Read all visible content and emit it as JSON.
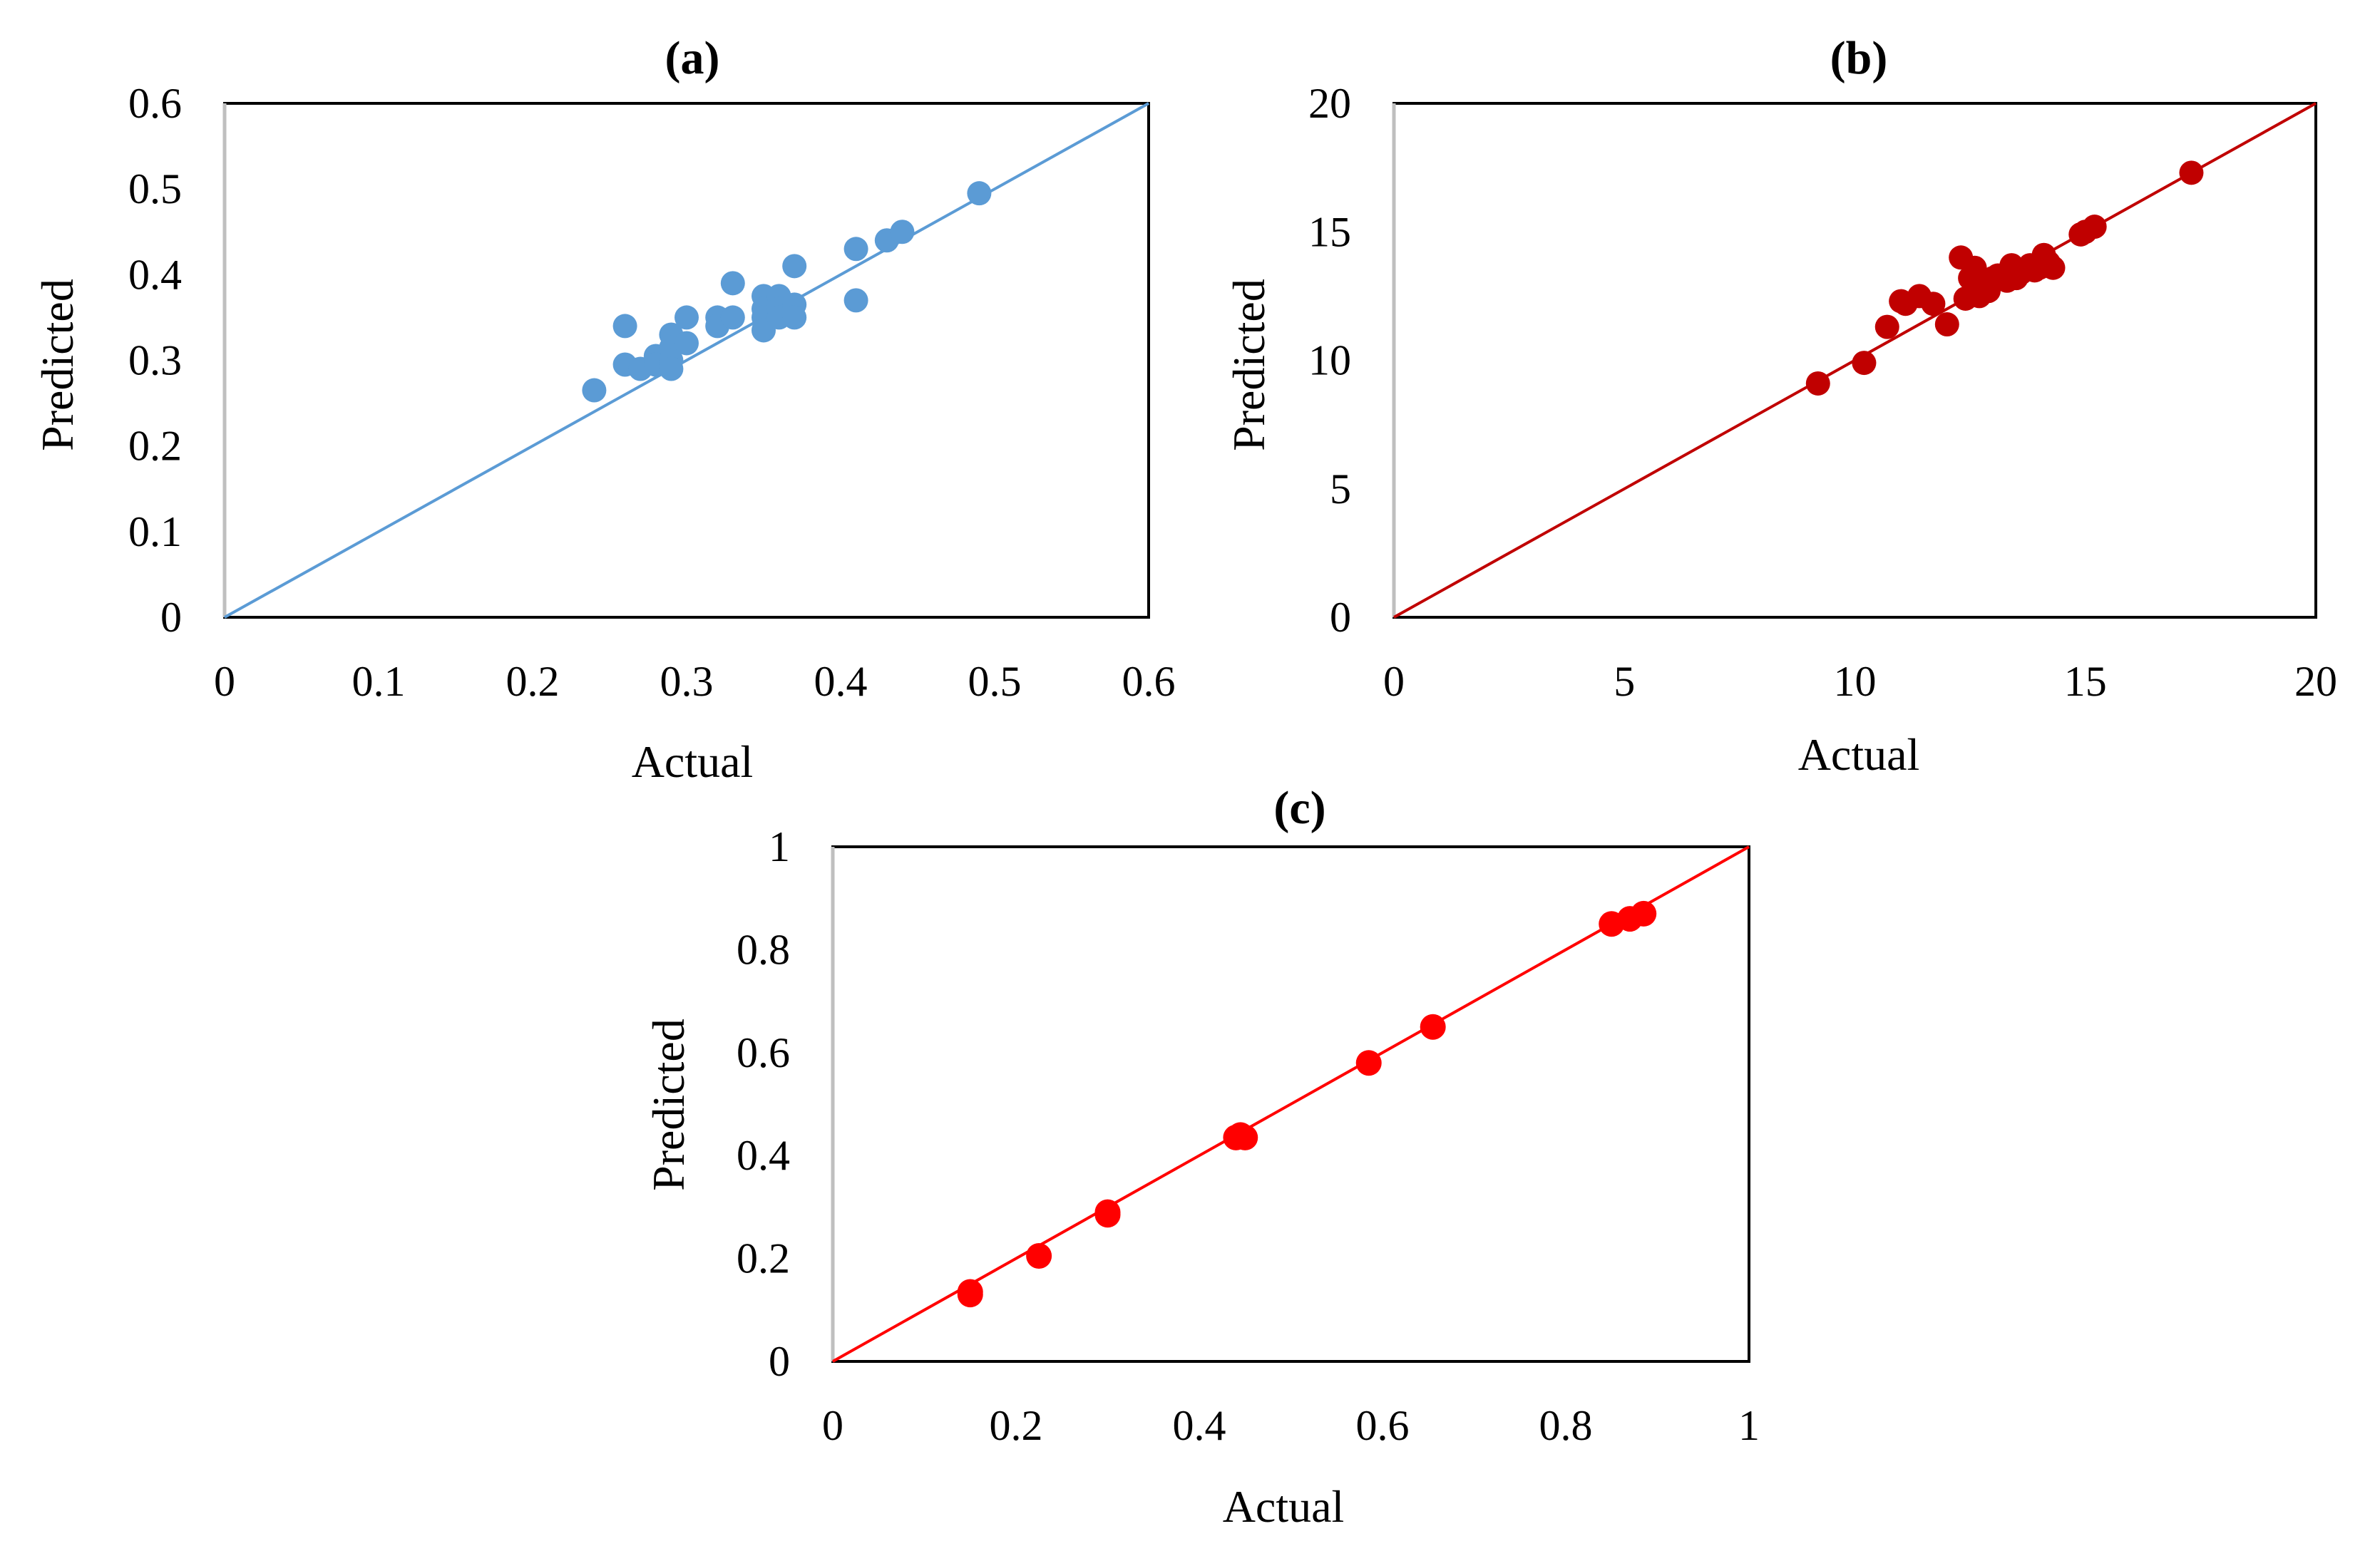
{
  "chart_data": [
    {
      "id": "a",
      "type": "scatter",
      "title": "(a)",
      "xlabel": "Actual",
      "ylabel": "Predicted",
      "xlim": [
        0,
        0.6
      ],
      "ylim": [
        0,
        0.6
      ],
      "xticks": [
        "0",
        "0.1",
        "0.2",
        "0.3",
        "0.4",
        "0.5",
        "0.6"
      ],
      "yticks": [
        "0",
        "0.1",
        "0.2",
        "0.3",
        "0.4",
        "0.5",
        "0.6"
      ],
      "color": "#5b9bd5",
      "reference_line": {
        "from": [
          0,
          0
        ],
        "to": [
          0.6,
          0.6
        ]
      },
      "x": [
        0.24,
        0.26,
        0.26,
        0.27,
        0.28,
        0.28,
        0.29,
        0.29,
        0.29,
        0.29,
        0.3,
        0.3,
        0.32,
        0.32,
        0.33,
        0.33,
        0.35,
        0.35,
        0.35,
        0.35,
        0.36,
        0.36,
        0.36,
        0.37,
        0.37,
        0.37,
        0.41,
        0.41,
        0.43,
        0.44,
        0.49
      ],
      "y": [
        0.265,
        0.295,
        0.34,
        0.29,
        0.305,
        0.295,
        0.33,
        0.315,
        0.3,
        0.29,
        0.35,
        0.32,
        0.35,
        0.34,
        0.39,
        0.35,
        0.375,
        0.36,
        0.35,
        0.335,
        0.375,
        0.36,
        0.35,
        0.41,
        0.365,
        0.35,
        0.43,
        0.37,
        0.44,
        0.45,
        0.495
      ]
    },
    {
      "id": "b",
      "type": "scatter",
      "title": "(b)",
      "xlabel": "Actual",
      "ylabel": "Predicted",
      "xlim": [
        0,
        20
      ],
      "ylim": [
        0,
        20
      ],
      "xticks": [
        "0",
        "5",
        "10",
        "15",
        "20"
      ],
      "yticks": [
        "0",
        "5",
        "10",
        "15",
        "20"
      ],
      "color": "#c00000",
      "reference_line": {
        "from": [
          0,
          0
        ],
        "to": [
          20,
          20
        ]
      },
      "x": [
        9.2,
        10.2,
        10.7,
        11.0,
        11.1,
        11.4,
        11.7,
        12.0,
        12.3,
        12.4,
        12.5,
        12.6,
        12.7,
        12.8,
        12.9,
        13.0,
        13.1,
        13.3,
        13.4,
        13.5,
        13.6,
        13.8,
        13.9,
        14.0,
        14.1,
        14.2,
        14.3,
        14.9,
        15.0,
        15.2,
        17.3
      ],
      "y": [
        9.1,
        9.9,
        11.3,
        12.3,
        12.2,
        12.5,
        12.2,
        11.4,
        14.0,
        12.4,
        13.2,
        13.6,
        12.5,
        13.0,
        12.7,
        13.2,
        13.3,
        13.1,
        13.7,
        13.2,
        13.4,
        13.7,
        13.5,
        13.6,
        14.1,
        13.8,
        13.6,
        14.9,
        15.0,
        15.2,
        17.3
      ]
    },
    {
      "id": "c",
      "type": "scatter",
      "title": "(c)",
      "xlabel": "Actual",
      "ylabel": "Predicted",
      "xlim": [
        0,
        1
      ],
      "ylim": [
        0,
        1
      ],
      "xticks": [
        "0",
        "0.2",
        "0.4",
        "0.6",
        "0.8",
        "1"
      ],
      "yticks": [
        "0",
        "0.2",
        "0.4",
        "0.6",
        "0.8",
        "1"
      ],
      "color": "#ff0000",
      "reference_line": {
        "from": [
          0,
          0
        ],
        "to": [
          1,
          1
        ]
      },
      "x": [
        0.15,
        0.15,
        0.225,
        0.3,
        0.3,
        0.44,
        0.445,
        0.45,
        0.585,
        0.655,
        0.85,
        0.87,
        0.885
      ],
      "y": [
        0.13,
        0.135,
        0.205,
        0.285,
        0.29,
        0.435,
        0.44,
        0.435,
        0.58,
        0.65,
        0.85,
        0.86,
        0.87
      ]
    }
  ]
}
